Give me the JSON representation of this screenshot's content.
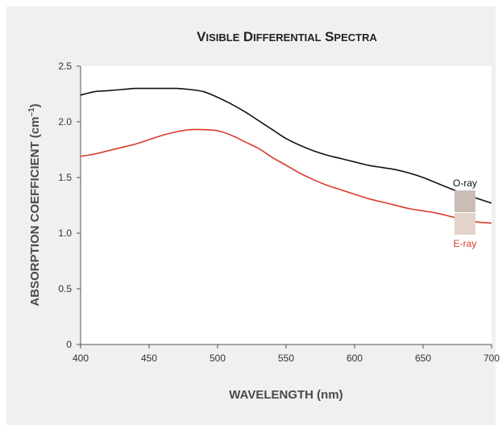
{
  "chart_data": {
    "type": "line",
    "title": "Visible Differential Spectra",
    "xlabel": "WAVELENGTH (nm)",
    "ylabel": "ABSORPTION COEFFICIENT (cm",
    "ylabel_sup": "–1",
    "ylabel_close": ")",
    "xlim": [
      400,
      700
    ],
    "ylim": [
      0,
      2.5
    ],
    "xticks": [
      400,
      450,
      500,
      550,
      600,
      650,
      700
    ],
    "xtick_labels": [
      "400",
      "450",
      "500",
      "550",
      "600",
      "650",
      "700"
    ],
    "yticks": [
      0,
      0.5,
      1.0,
      1.5,
      2.0,
      2.5
    ],
    "ytick_labels": [
      "0",
      "0.5",
      "1.0",
      "1.5",
      "2.0",
      "2.5"
    ],
    "grid": false,
    "legend": "right",
    "series": [
      {
        "name": "O-ray",
        "color": "#111111",
        "swatch": "#cbbdb6",
        "x": [
          400,
          410,
          420,
          430,
          440,
          450,
          460,
          470,
          480,
          490,
          500,
          510,
          520,
          530,
          540,
          550,
          560,
          570,
          580,
          590,
          600,
          610,
          620,
          630,
          640,
          650,
          660,
          670,
          680,
          690,
          700
        ],
        "y": [
          2.24,
          2.27,
          2.28,
          2.29,
          2.3,
          2.3,
          2.3,
          2.3,
          2.29,
          2.27,
          2.22,
          2.16,
          2.09,
          2.01,
          1.93,
          1.85,
          1.79,
          1.74,
          1.7,
          1.67,
          1.64,
          1.61,
          1.59,
          1.57,
          1.54,
          1.5,
          1.45,
          1.4,
          1.35,
          1.31,
          1.27
        ]
      },
      {
        "name": "E-ray",
        "color": "#d93a2a",
        "swatch": "#e4d3cb",
        "x": [
          400,
          410,
          420,
          430,
          440,
          450,
          460,
          470,
          480,
          490,
          500,
          510,
          520,
          530,
          540,
          550,
          560,
          570,
          580,
          590,
          600,
          610,
          620,
          630,
          640,
          650,
          660,
          670,
          680,
          690,
          700
        ],
        "y": [
          1.69,
          1.71,
          1.74,
          1.77,
          1.8,
          1.84,
          1.88,
          1.91,
          1.93,
          1.93,
          1.92,
          1.88,
          1.82,
          1.76,
          1.68,
          1.61,
          1.54,
          1.48,
          1.43,
          1.39,
          1.35,
          1.31,
          1.28,
          1.25,
          1.22,
          1.2,
          1.18,
          1.15,
          1.12,
          1.1,
          1.09
        ]
      }
    ]
  }
}
